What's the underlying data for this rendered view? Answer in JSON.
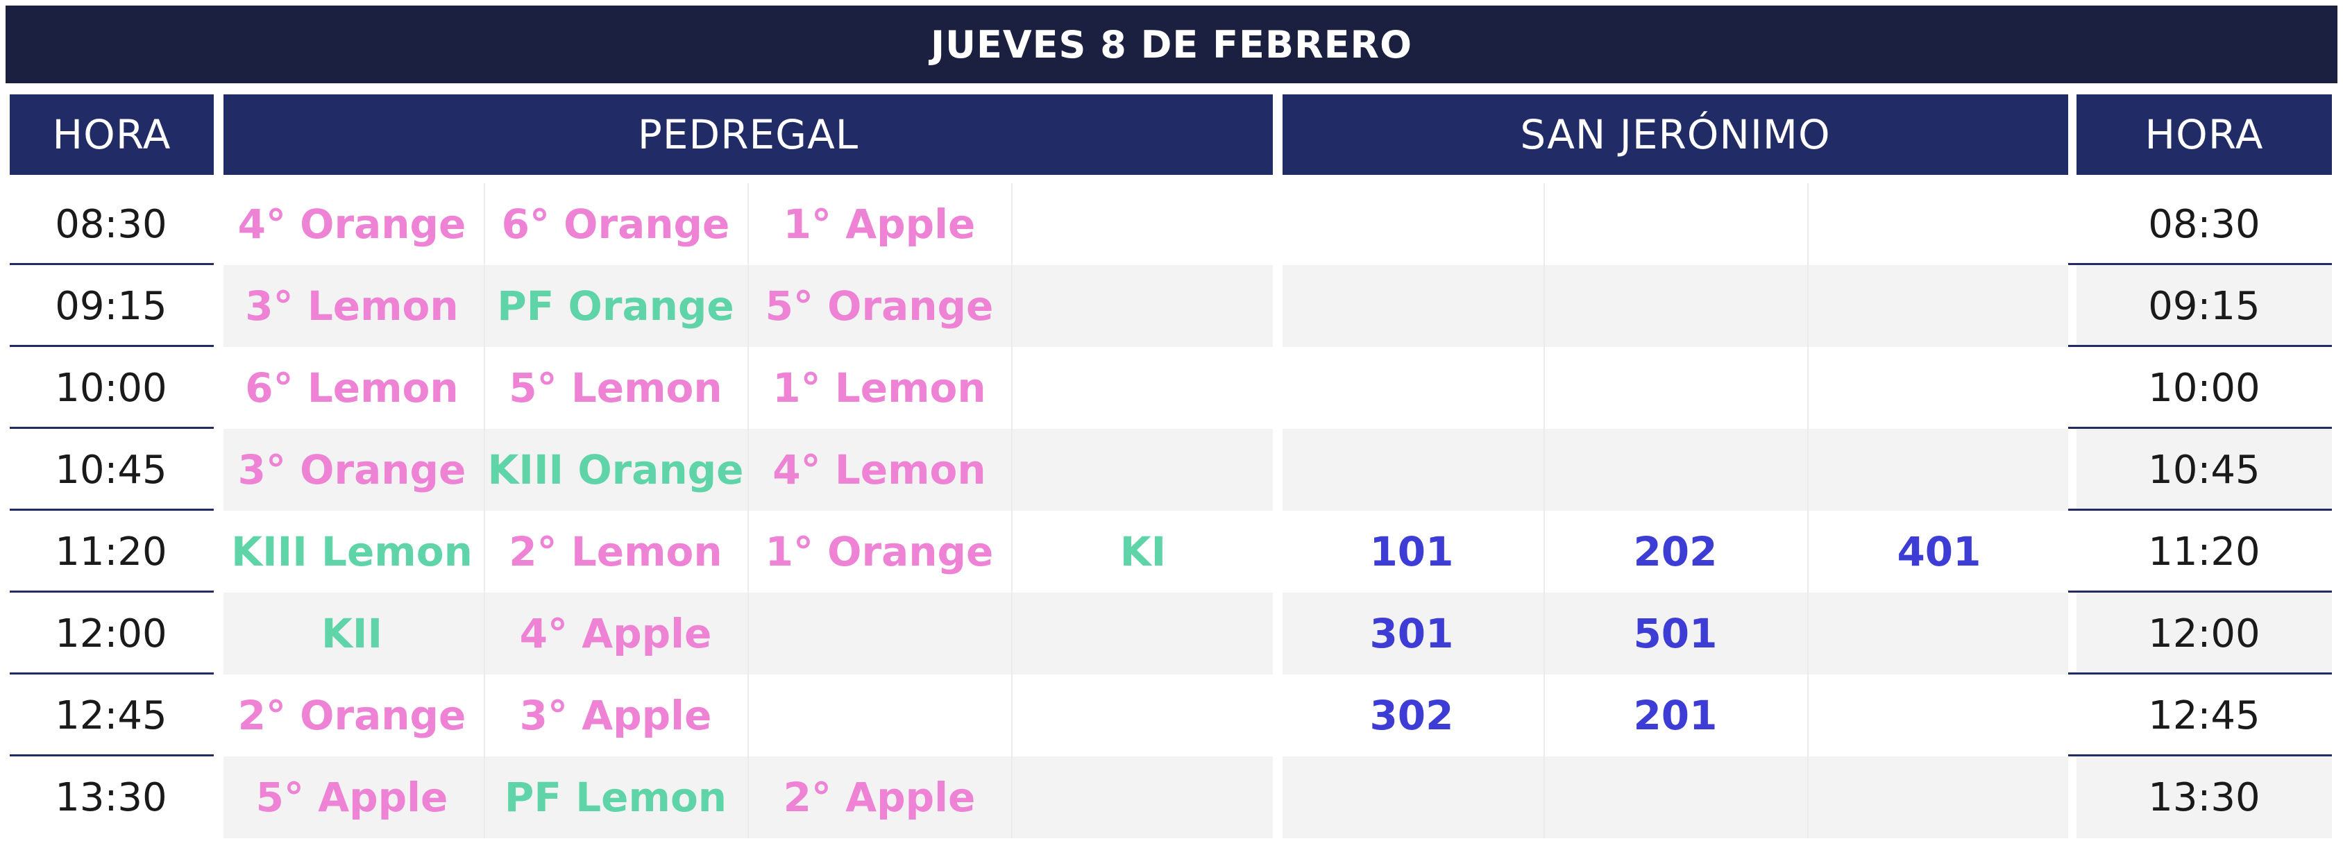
{
  "title": "JUEVES 8 DE FEBRERO",
  "headers": {
    "hora_left": "HORA",
    "pedregal": "PEDREGAL",
    "san_jeronimo": "SAN JERÓNIMO",
    "hora_right": "HORA"
  },
  "colors": {
    "pink": "#ee82d4",
    "green": "#5fd4a8",
    "blue": "#3d3dd6",
    "navy_title": "#1b2040",
    "navy_header": "#212b66"
  },
  "rows": [
    {
      "time": "08:30",
      "pedregal": [
        "4° Orange",
        "6° Orange",
        "1° Apple",
        ""
      ],
      "san_jeronimo": [
        "",
        "",
        ""
      ]
    },
    {
      "time": "09:15",
      "pedregal": [
        "3° Lemon",
        "PF Orange",
        "5° Orange",
        ""
      ],
      "san_jeronimo": [
        "",
        "",
        ""
      ]
    },
    {
      "time": "10:00",
      "pedregal": [
        "6° Lemon",
        "5° Lemon",
        "1° Lemon",
        ""
      ],
      "san_jeronimo": [
        "",
        "",
        ""
      ]
    },
    {
      "time": "10:45",
      "pedregal": [
        "3° Orange",
        "KIII Orange",
        "4° Lemon",
        ""
      ],
      "san_jeronimo": [
        "",
        "",
        ""
      ]
    },
    {
      "time": "11:20",
      "pedregal": [
        "KIII Lemon",
        "2° Lemon",
        "1° Orange",
        "KI"
      ],
      "san_jeronimo": [
        "101",
        "202",
        "401"
      ]
    },
    {
      "time": "12:00",
      "pedregal": [
        "KII",
        "4° Apple",
        "",
        ""
      ],
      "san_jeronimo": [
        "301",
        "501",
        ""
      ]
    },
    {
      "time": "12:45",
      "pedregal": [
        "2° Orange",
        "3° Apple",
        "",
        ""
      ],
      "san_jeronimo": [
        "302",
        "201",
        ""
      ]
    },
    {
      "time": "13:30",
      "pedregal": [
        "5° Apple",
        "PF Lemon",
        "2° Apple",
        ""
      ],
      "san_jeronimo": [
        "",
        "",
        ""
      ]
    }
  ]
}
